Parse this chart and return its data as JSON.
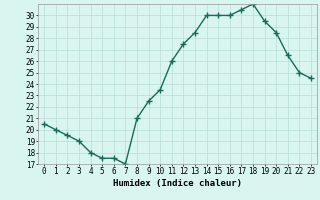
{
  "x": [
    0,
    1,
    2,
    3,
    4,
    5,
    6,
    7,
    8,
    9,
    10,
    11,
    12,
    13,
    14,
    15,
    16,
    17,
    18,
    19,
    20,
    21,
    22,
    23
  ],
  "y": [
    20.5,
    20.0,
    19.5,
    19.0,
    18.0,
    17.5,
    17.5,
    17.0,
    21.0,
    22.5,
    23.5,
    26.0,
    27.5,
    28.5,
    30.0,
    30.0,
    30.0,
    30.5,
    31.0,
    29.5,
    28.5,
    26.5,
    25.0,
    24.5
  ],
  "line_color": "#1a6b5a",
  "marker": "+",
  "marker_size": 4,
  "bg_color": "#d8f5f0",
  "grid_color": "#b8ddd8",
  "xlabel": "Humidex (Indice chaleur)",
  "xlim": [
    -0.5,
    23.5
  ],
  "ylim": [
    17,
    31
  ],
  "yticks": [
    17,
    18,
    19,
    20,
    21,
    22,
    23,
    24,
    25,
    26,
    27,
    28,
    29,
    30
  ],
  "xticks": [
    0,
    1,
    2,
    3,
    4,
    5,
    6,
    7,
    8,
    9,
    10,
    11,
    12,
    13,
    14,
    15,
    16,
    17,
    18,
    19,
    20,
    21,
    22,
    23
  ],
  "xlabel_fontsize": 6.5,
  "tick_fontsize": 5.5,
  "line_width": 1.0
}
